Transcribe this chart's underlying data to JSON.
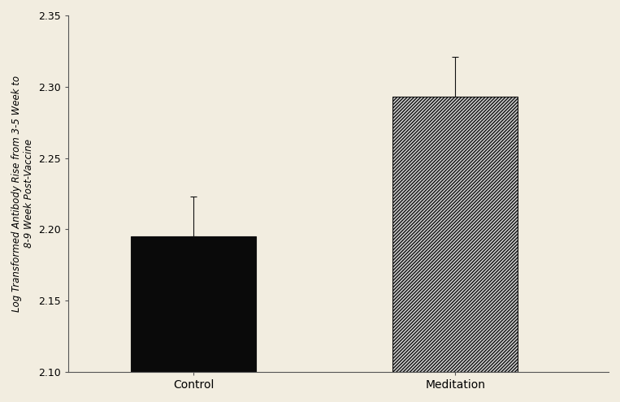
{
  "categories": [
    "Control",
    "Meditation"
  ],
  "values": [
    2.195,
    2.293
  ],
  "errors": [
    0.028,
    0.028
  ],
  "bar_colors": [
    "#0a0a0a",
    "#d0d0d0"
  ],
  "hatch_patterns": [
    "",
    "////////"
  ],
  "ylabel": "Log Transformed Antibody Rise from 3-5 Week to\n8-9 Week Post-Vaccine",
  "ylim": [
    2.1,
    2.35
  ],
  "yticks": [
    2.1,
    2.15,
    2.2,
    2.25,
    2.3,
    2.35
  ],
  "background_color": "#f2ede0",
  "bar_width": 0.22,
  "bar_edge_color": "#111111",
  "ylabel_fontsize": 8.5,
  "tick_fontsize": 9,
  "xlabel_fontsize": 10,
  "x_positions": [
    0.27,
    0.73
  ]
}
